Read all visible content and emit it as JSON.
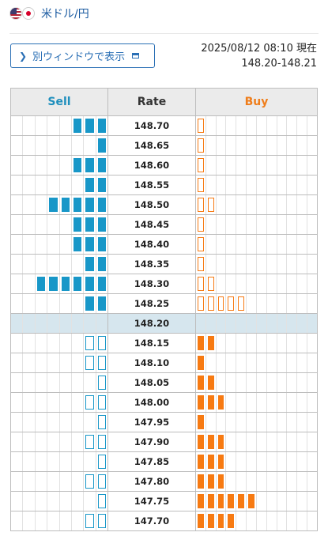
{
  "header": {
    "flags": [
      "us-flag-icon",
      "jp-flag-icon"
    ],
    "pair": "米ドル/円"
  },
  "open_window_button": {
    "label": "別ウィンドウで表示",
    "icons": [
      "chevron-right-icon",
      "window-icon"
    ]
  },
  "timestamp": {
    "datetime": "2025/08/12 08:10 現在",
    "bid_ask": "148.20-148.21"
  },
  "colors": {
    "sell_accent": "#1f8fbd",
    "sell_bar": "#1897c8",
    "buy_accent": "#ef7d1a",
    "buy_bar": "#f77a12",
    "mid_row": "#d6e6ee"
  },
  "table": {
    "headers": {
      "sell": "Sell",
      "rate": "Rate",
      "buy": "Buy"
    },
    "current_rate": "148.20",
    "rows": [
      {
        "rate": "148.70",
        "sell": 3,
        "buy": 1,
        "sell_style": "filled",
        "buy_style": "outline"
      },
      {
        "rate": "148.65",
        "sell": 1,
        "buy": 1,
        "sell_style": "filled",
        "buy_style": "outline"
      },
      {
        "rate": "148.60",
        "sell": 3,
        "buy": 1,
        "sell_style": "filled",
        "buy_style": "outline"
      },
      {
        "rate": "148.55",
        "sell": 2,
        "buy": 1,
        "sell_style": "filled",
        "buy_style": "outline"
      },
      {
        "rate": "148.50",
        "sell": 5,
        "buy": 2,
        "sell_style": "filled",
        "buy_style": "outline"
      },
      {
        "rate": "148.45",
        "sell": 3,
        "buy": 1,
        "sell_style": "filled",
        "buy_style": "outline"
      },
      {
        "rate": "148.40",
        "sell": 3,
        "buy": 1,
        "sell_style": "filled",
        "buy_style": "outline"
      },
      {
        "rate": "148.35",
        "sell": 2,
        "buy": 1,
        "sell_style": "filled",
        "buy_style": "outline"
      },
      {
        "rate": "148.30",
        "sell": 6,
        "buy": 2,
        "sell_style": "filled",
        "buy_style": "outline"
      },
      {
        "rate": "148.25",
        "sell": 2,
        "buy": 5,
        "sell_style": "filled",
        "buy_style": "outline"
      },
      {
        "rate": "148.20",
        "sell": 0,
        "buy": 0,
        "sell_style": "none",
        "buy_style": "none",
        "current": true
      },
      {
        "rate": "148.15",
        "sell": 2,
        "buy": 2,
        "sell_style": "outline",
        "buy_style": "filled"
      },
      {
        "rate": "148.10",
        "sell": 2,
        "buy": 1,
        "sell_style": "outline",
        "buy_style": "filled"
      },
      {
        "rate": "148.05",
        "sell": 1,
        "buy": 2,
        "sell_style": "outline",
        "buy_style": "filled"
      },
      {
        "rate": "148.00",
        "sell": 2,
        "buy": 3,
        "sell_style": "outline",
        "buy_style": "filled"
      },
      {
        "rate": "147.95",
        "sell": 1,
        "buy": 1,
        "sell_style": "outline",
        "buy_style": "filled"
      },
      {
        "rate": "147.90",
        "sell": 2,
        "buy": 3,
        "sell_style": "outline",
        "buy_style": "filled"
      },
      {
        "rate": "147.85",
        "sell": 1,
        "buy": 3,
        "sell_style": "outline",
        "buy_style": "filled"
      },
      {
        "rate": "147.80",
        "sell": 2,
        "buy": 3,
        "sell_style": "outline",
        "buy_style": "filled"
      },
      {
        "rate": "147.75",
        "sell": 1,
        "buy": 6,
        "sell_style": "outline",
        "buy_style": "filled"
      },
      {
        "rate": "147.70",
        "sell": 2,
        "buy": 4,
        "sell_style": "outline",
        "buy_style": "filled"
      }
    ]
  }
}
